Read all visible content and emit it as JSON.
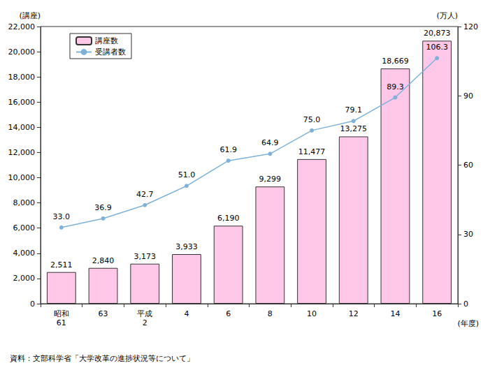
{
  "chart_data": {
    "type": "bar",
    "categories": [
      "昭和\n61",
      "63",
      "平成\n2",
      "4",
      "6",
      "8",
      "10",
      "12",
      "14",
      "16"
    ],
    "x_label": "(年度)",
    "y_label": "(講座)",
    "y2_label": "(万人)",
    "source": "資料：文部科学省「大学改革の進捗状況等について」",
    "series": [
      {
        "name": "講座数",
        "type": "bar",
        "color": "#ffc8e8",
        "values": [
          2511,
          2840,
          3173,
          3933,
          6190,
          9299,
          11477,
          13275,
          18669,
          20873
        ],
        "value_labels": [
          "2,511",
          "2,840",
          "3,173",
          "3,933",
          "6,190",
          "9,299",
          "11,477",
          "13,275",
          "18,669",
          "20,873"
        ]
      },
      {
        "name": "受講者数",
        "type": "line",
        "axis": "y2",
        "color": "#7fb2d9",
        "marker": "circle",
        "values": [
          33.0,
          36.9,
          42.7,
          51.0,
          61.9,
          64.9,
          75.0,
          79.1,
          89.3,
          106.3
        ],
        "value_labels": [
          "33.0",
          "36.9",
          "42.7",
          "51.0",
          "61.9",
          "64.9",
          "75.0",
          "79.1",
          "89.3",
          "106.3"
        ]
      }
    ],
    "ylim": [
      0,
      22000
    ],
    "yticks": [
      {
        "value": 0,
        "label": "0"
      },
      {
        "value": 2000,
        "label": "2,000"
      },
      {
        "value": 4000,
        "label": "4,000"
      },
      {
        "value": 6000,
        "label": "6,000"
      },
      {
        "value": 8000,
        "label": "8,000"
      },
      {
        "value": 10000,
        "label": "10,000"
      },
      {
        "value": 12000,
        "label": "12,000"
      },
      {
        "value": 14000,
        "label": "14,000"
      },
      {
        "value": 16000,
        "label": "16,000"
      },
      {
        "value": 18000,
        "label": "18,000"
      },
      {
        "value": 20000,
        "label": "20,000"
      },
      {
        "value": 22000,
        "label": "22,000"
      }
    ],
    "y2lim": [
      0,
      120
    ],
    "y2ticks": [
      0,
      30,
      60,
      90,
      120
    ],
    "legend": "upper left",
    "data_labels": true,
    "grid": false
  }
}
